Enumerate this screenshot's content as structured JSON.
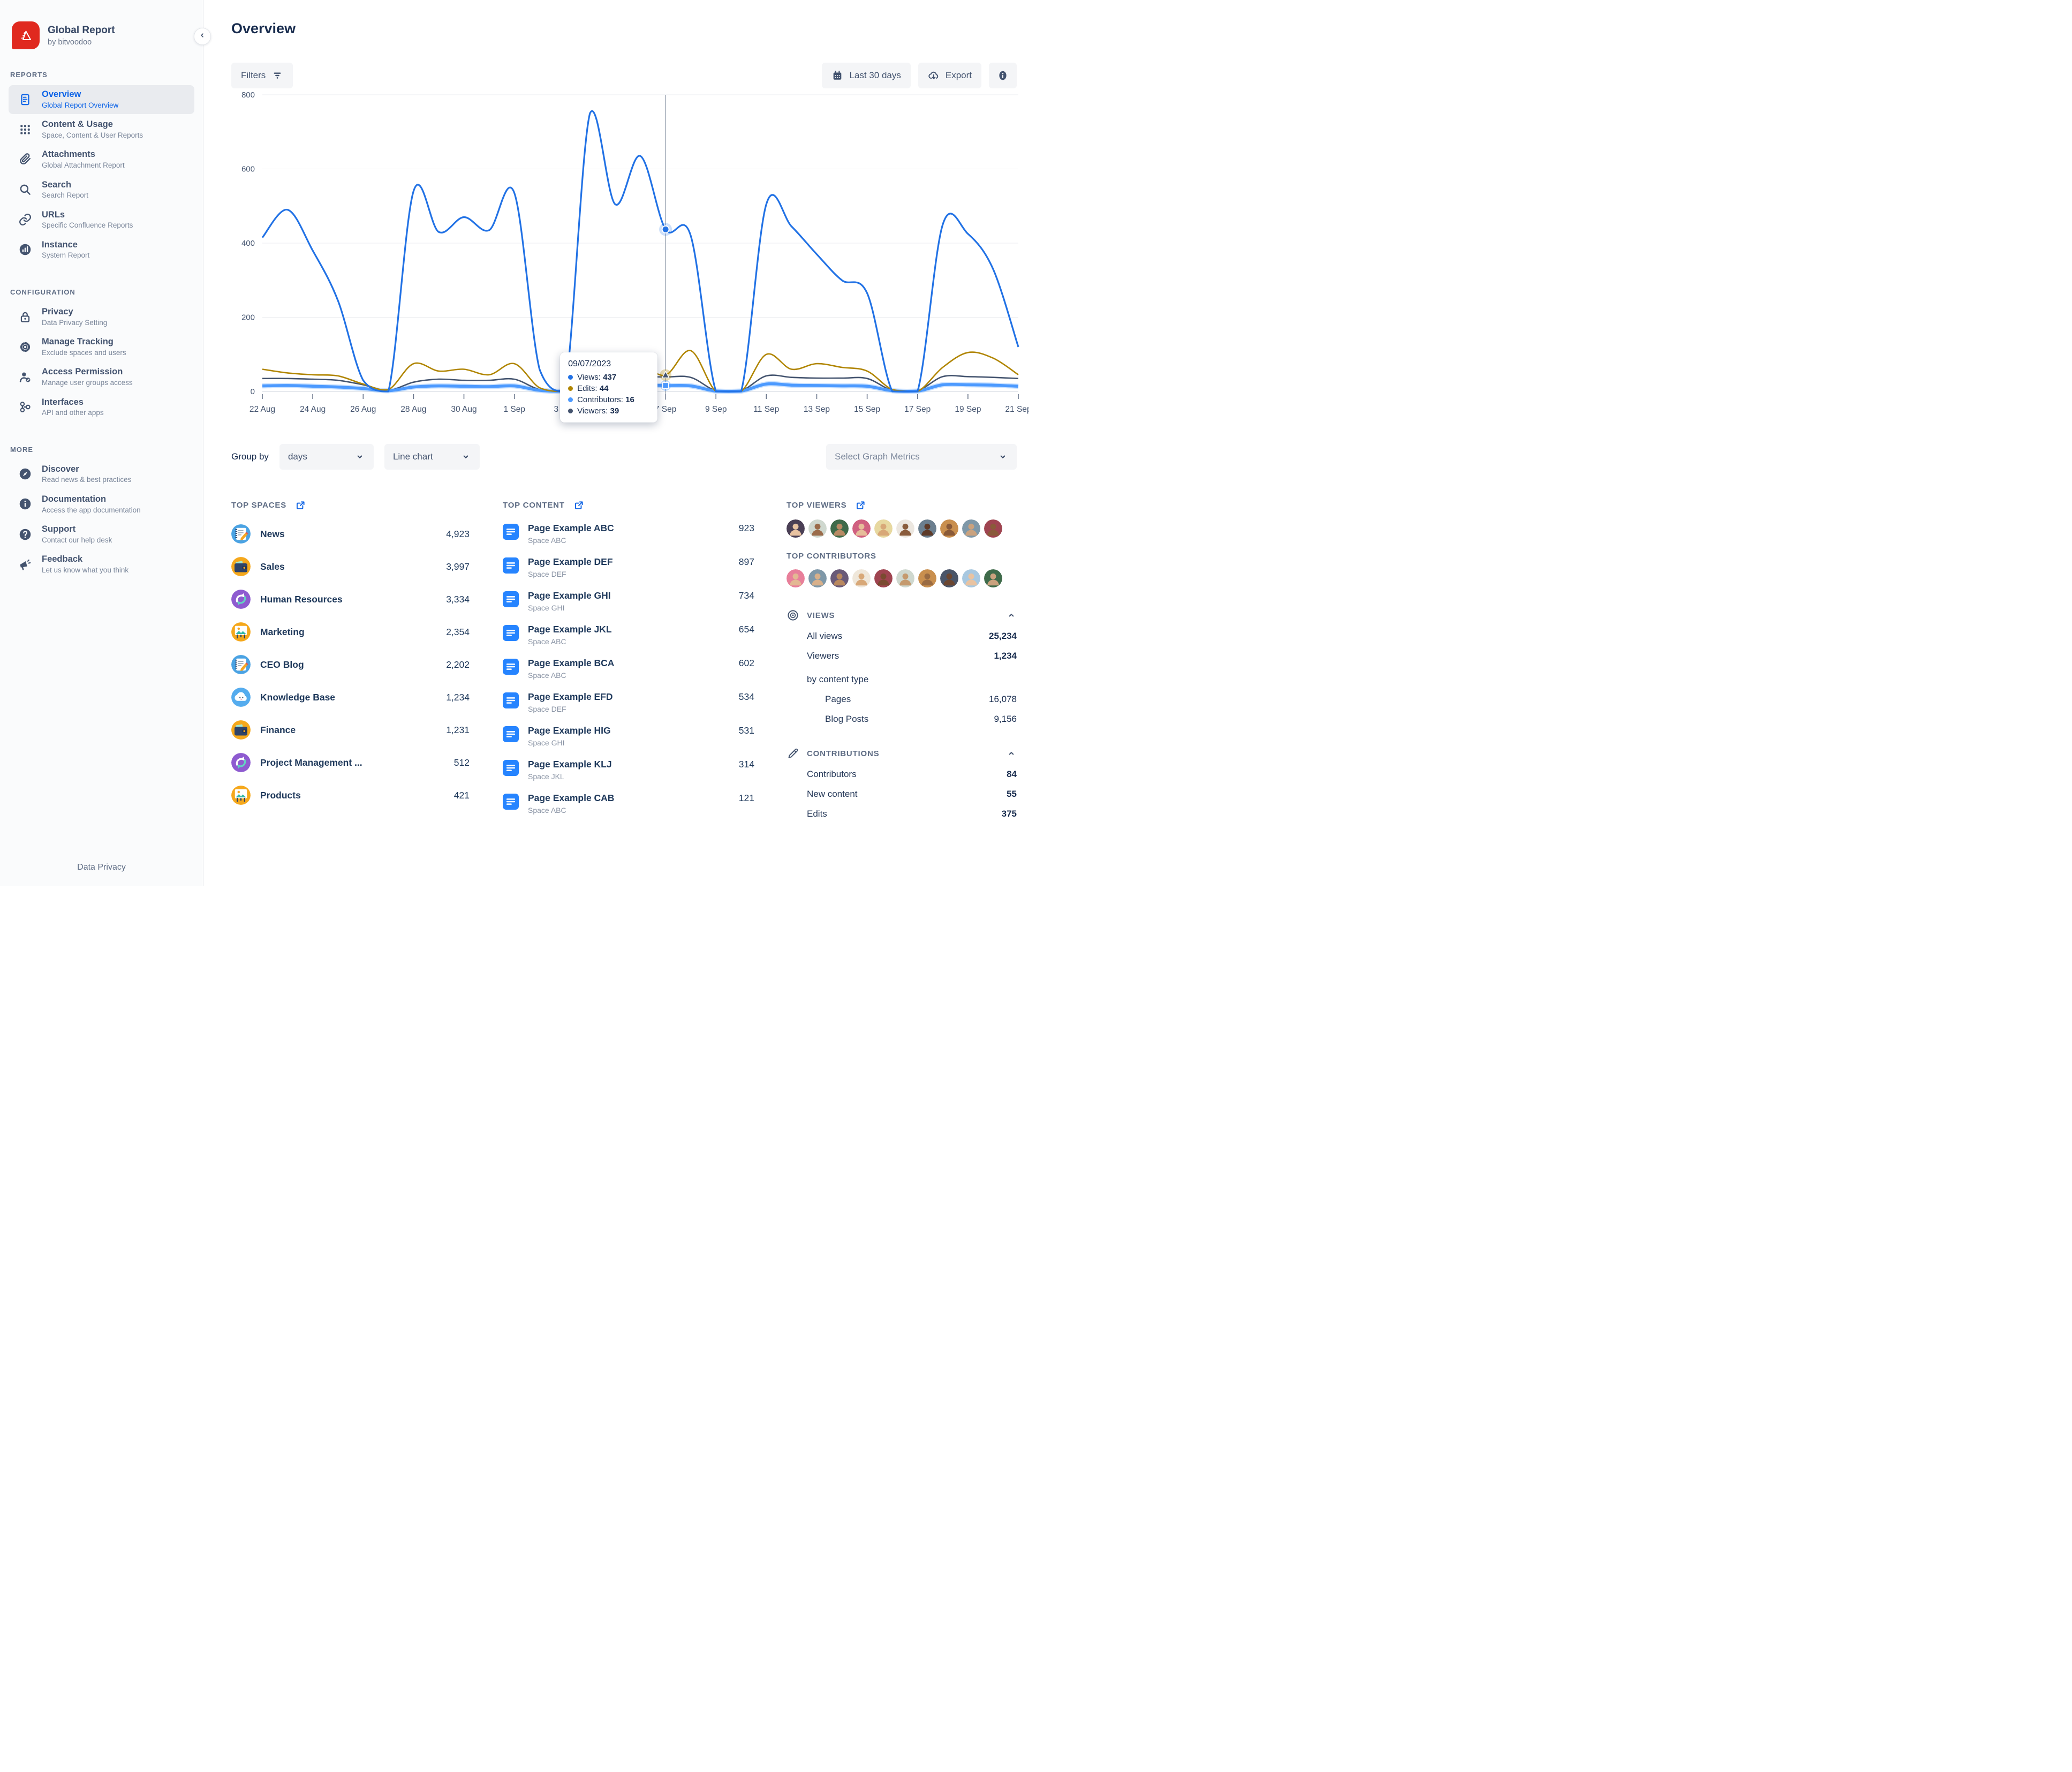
{
  "app": {
    "name": "Global Report",
    "by": "by bitvoodoo"
  },
  "sidebar": {
    "sections": [
      {
        "label": "REPORTS",
        "items": [
          {
            "icon": "doc",
            "title": "Overview",
            "subtitle": "Global Report Overview",
            "active": true
          },
          {
            "icon": "grid",
            "title": "Content & Usage",
            "subtitle": "Space, Content & User Reports",
            "active": false
          },
          {
            "icon": "clip",
            "title": "Attachments",
            "subtitle": "Global Attachment Report",
            "active": false
          },
          {
            "icon": "search",
            "title": "Search",
            "subtitle": "Search Report",
            "active": false
          },
          {
            "icon": "link",
            "title": "URLs",
            "subtitle": "Specific Confluence Reports",
            "active": false
          },
          {
            "icon": "instance",
            "title": "Instance",
            "subtitle": "System Report",
            "active": false
          }
        ]
      },
      {
        "label": "CONFIGURATION",
        "items": [
          {
            "icon": "lock",
            "title": "Privacy",
            "subtitle": "Data Privacy Setting",
            "active": false
          },
          {
            "icon": "gear",
            "title": "Manage Tracking",
            "subtitle": "Exclude spaces and users",
            "active": false
          },
          {
            "icon": "usercheck",
            "title": "Access Permission",
            "subtitle": "Manage user groups access",
            "active": false
          },
          {
            "icon": "nodes",
            "title": "Interfaces",
            "subtitle": "API and other apps",
            "active": false
          }
        ]
      },
      {
        "label": "MORE",
        "items": [
          {
            "icon": "compass",
            "title": "Discover",
            "subtitle": "Read news & best practices",
            "active": false
          },
          {
            "icon": "infoc",
            "title": "Documentation",
            "subtitle": "Access the app documentation",
            "active": false
          },
          {
            "icon": "question",
            "title": "Support",
            "subtitle": "Contact our help desk",
            "active": false
          },
          {
            "icon": "mega",
            "title": "Feedback",
            "subtitle": "Let us know what you think",
            "active": false
          }
        ]
      }
    ],
    "footer_link": "Data Privacy"
  },
  "header": {
    "title": "Overview"
  },
  "toolbar": {
    "filters_label": "Filters",
    "range_label": "Last 30 days",
    "export_label": "Export"
  },
  "controls": {
    "group_by_label": "Group by",
    "group_by_value": "days",
    "chart_type_value": "Line chart",
    "metrics_placeholder": "Select Graph Metrics"
  },
  "chart_data": {
    "type": "line",
    "x": [
      "22 Aug",
      "23 Aug",
      "24 Aug",
      "25 Aug",
      "26 Aug",
      "27 Aug",
      "28 Aug",
      "29 Aug",
      "30 Aug",
      "31 Aug",
      "1 Sep",
      "2 Sep",
      "3 Sep",
      "4 Sep",
      "5 Sep",
      "6 Sep",
      "7 Sep",
      "8 Sep",
      "9 Sep",
      "10 Sep",
      "11 Sep",
      "12 Sep",
      "13 Sep",
      "14 Sep",
      "15 Sep",
      "16 Sep",
      "17 Sep",
      "18 Sep",
      "19 Sep",
      "20 Sep",
      "21 Sep"
    ],
    "tick_every": 2,
    "ylim": [
      0,
      800
    ],
    "yticks": [
      0,
      200,
      400,
      600,
      800
    ],
    "grid": true,
    "legend": "none",
    "series": [
      {
        "name": "Views",
        "color": "#2272e5",
        "width": 3.2,
        "values": [
          415,
          490,
          380,
          245,
          30,
          0,
          540,
          430,
          470,
          435,
          535,
          60,
          0,
          750,
          505,
          635,
          437,
          420,
          0,
          0,
          505,
          445,
          370,
          300,
          265,
          0,
          0,
          450,
          425,
          330,
          120
        ]
      },
      {
        "name": "Edits",
        "color": "#b08500",
        "width": 2.6,
        "values": [
          60,
          50,
          45,
          42,
          20,
          5,
          75,
          55,
          60,
          45,
          75,
          10,
          0,
          30,
          40,
          70,
          44,
          110,
          0,
          0,
          100,
          60,
          75,
          65,
          55,
          5,
          0,
          65,
          105,
          90,
          45
        ]
      },
      {
        "name": "Viewers",
        "color": "#44546f",
        "width": 2.6,
        "values": [
          35,
          35,
          33,
          30,
          18,
          3,
          25,
          33,
          30,
          30,
          33,
          5,
          0,
          40,
          40,
          40,
          39,
          38,
          2,
          2,
          42,
          38,
          36,
          36,
          35,
          3,
          2,
          40,
          40,
          38,
          35
        ]
      },
      {
        "name": "Contributors",
        "color": "#4c9aff",
        "width": 5.5,
        "values": [
          15,
          16,
          14,
          12,
          8,
          2,
          12,
          15,
          14,
          13,
          15,
          3,
          1,
          18,
          17,
          17,
          16,
          15,
          1,
          1,
          20,
          17,
          16,
          15,
          14,
          2,
          1,
          18,
          18,
          17,
          14
        ]
      }
    ],
    "hover": {
      "index": 16,
      "date": "09/07/2023",
      "rows": [
        {
          "label": "Views",
          "value": "437",
          "color": "#2272e5"
        },
        {
          "label": "Edits",
          "value": "44",
          "color": "#b08500"
        },
        {
          "label": "Contributors",
          "value": "16",
          "color": "#4c9aff"
        },
        {
          "label": "Viewers",
          "value": "39",
          "color": "#44546f"
        }
      ]
    }
  },
  "top_spaces": {
    "title": "TOP SPACES",
    "items": [
      {
        "name": "News",
        "value": "4,923",
        "glyph": "note",
        "bg": "#4ba3e3"
      },
      {
        "name": "Sales",
        "value": "3,997",
        "glyph": "wallet",
        "bg": "#f5a81c"
      },
      {
        "name": "Human Resources",
        "value": "3,334",
        "glyph": "arrows",
        "bg": "#8e5bd0"
      },
      {
        "name": "Marketing",
        "value": "2,354",
        "glyph": "easel",
        "bg": "#f5a81c"
      },
      {
        "name": "CEO Blog",
        "value": "2,202",
        "glyph": "note",
        "bg": "#4ba3e3"
      },
      {
        "name": "Knowledge Base",
        "value": "1,234",
        "glyph": "cloud",
        "bg": "#55acee"
      },
      {
        "name": "Finance",
        "value": "1,231",
        "glyph": "wallet",
        "bg": "#f5a81c"
      },
      {
        "name": "Project Management ...",
        "value": "512",
        "glyph": "arrows",
        "bg": "#8e5bd0"
      },
      {
        "name": "Products",
        "value": "421",
        "glyph": "easel",
        "bg": "#f5a81c"
      }
    ]
  },
  "top_content": {
    "title": "TOP CONTENT",
    "items": [
      {
        "title": "Page Example ABC",
        "space": "Space ABC",
        "value": "923"
      },
      {
        "title": "Page Example DEF",
        "space": "Space DEF",
        "value": "897"
      },
      {
        "title": "Page Example GHI",
        "space": "Space GHI",
        "value": "734"
      },
      {
        "title": "Page Example JKL",
        "space": "Space ABC",
        "value": "654"
      },
      {
        "title": "Page Example BCA",
        "space": "Space ABC",
        "value": "602"
      },
      {
        "title": "Page Example EFD",
        "space": "Space DEF",
        "value": "534"
      },
      {
        "title": "Page Example HIG",
        "space": "Space GHI",
        "value": "531"
      },
      {
        "title": "Page Example KLJ",
        "space": "Space JKL",
        "value": "314"
      },
      {
        "title": "Page Example CAB",
        "space": "Space ABC",
        "value": "121"
      }
    ]
  },
  "top_viewers": {
    "title": "TOP VIEWERS",
    "avatars": [
      {
        "bg": "#4a3f55",
        "tone": "#e9c3a1"
      },
      {
        "bg": "#cfd8cf",
        "tone": "#9a6b4a"
      },
      {
        "bg": "#3f6b4a",
        "tone": "#b98a64"
      },
      {
        "bg": "#d06080",
        "tone": "#e6bd9a"
      },
      {
        "bg": "#e7d8a0",
        "tone": "#d8a878"
      },
      {
        "bg": "#ece7e0",
        "tone": "#8a5c3c"
      },
      {
        "bg": "#6b7f8f",
        "tone": "#5d3a28"
      },
      {
        "bg": "#c98f4e",
        "tone": "#8a5a38"
      },
      {
        "bg": "#7f98a8",
        "tone": "#caa27e"
      },
      {
        "bg": "#9f4450",
        "tone": "#8a5a3a"
      }
    ]
  },
  "top_contributors": {
    "title": "TOP CONTRIBUTORS",
    "avatars": [
      {
        "bg": "#e87f9a",
        "tone": "#e3b893"
      },
      {
        "bg": "#7f98a8",
        "tone": "#d8b08a"
      },
      {
        "bg": "#6a5a78",
        "tone": "#b9885e"
      },
      {
        "bg": "#efe7da",
        "tone": "#d8a878"
      },
      {
        "bg": "#9f4450",
        "tone": "#7a4a30"
      },
      {
        "bg": "#cfd8cf",
        "tone": "#c59a6e"
      },
      {
        "bg": "#c98f4e",
        "tone": "#9a6b42"
      },
      {
        "bg": "#4a5568",
        "tone": "#6b4630"
      },
      {
        "bg": "#a8c8e0",
        "tone": "#e9c3a1"
      },
      {
        "bg": "#3f6b4a",
        "tone": "#caa27e"
      }
    ]
  },
  "views_panel": {
    "title": "VIEWS",
    "rows": [
      {
        "label": "All views",
        "value": "25,234"
      },
      {
        "label": "Viewers",
        "value": "1,234"
      }
    ],
    "subheader": "by content type",
    "sub_rows": [
      {
        "label": "Pages",
        "value": "16,078"
      },
      {
        "label": "Blog Posts",
        "value": "9,156"
      }
    ]
  },
  "contributions_panel": {
    "title": "CONTRIBUTIONS",
    "rows": [
      {
        "label": "Contributors",
        "value": "84"
      },
      {
        "label": "New content",
        "value": "55"
      },
      {
        "label": "Edits",
        "value": "375"
      }
    ]
  }
}
